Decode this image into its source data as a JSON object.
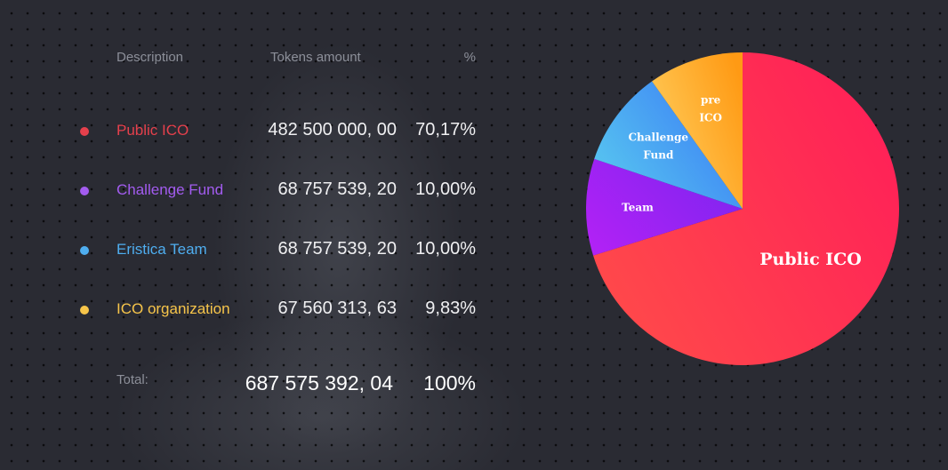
{
  "table": {
    "headers": {
      "description": "Description",
      "tokens": "Tokens amount",
      "percent": "%"
    },
    "rows": [
      {
        "name": "Public ICO",
        "tokens": "482 500 000, 00",
        "percent": "70,17%",
        "color": "#e5404c"
      },
      {
        "name": "Challenge Fund",
        "tokens": "68 757 539, 20",
        "percent": "10,00%",
        "color": "#a35cf0"
      },
      {
        "name": "Eristica Team",
        "tokens": "68 757 539, 20",
        "percent": "10,00%",
        "color": "#4faef0"
      },
      {
        "name": "ICO organization",
        "tokens": "67 560 313, 63",
        "percent": "9,83%",
        "color": "#f7c54a"
      }
    ],
    "total": {
      "label": "Total:",
      "tokens": "687 575 392, 04",
      "percent": "100%"
    }
  },
  "chart_data": {
    "type": "pie",
    "slices": [
      {
        "label": "Public ICO",
        "value": 70.17,
        "colors": [
          "#ff1f58",
          "#ff4a4a"
        ]
      },
      {
        "label": "Team",
        "value": 10.0,
        "colors": [
          "#7e24f0",
          "#b022f5"
        ]
      },
      {
        "label": "Challenge Fund",
        "value": 10.0,
        "colors": [
          "#3a7bf5",
          "#58c8f0"
        ]
      },
      {
        "label": "pre ICO",
        "value": 9.83,
        "colors": [
          "#ff9a14",
          "#ffd060"
        ]
      }
    ]
  }
}
